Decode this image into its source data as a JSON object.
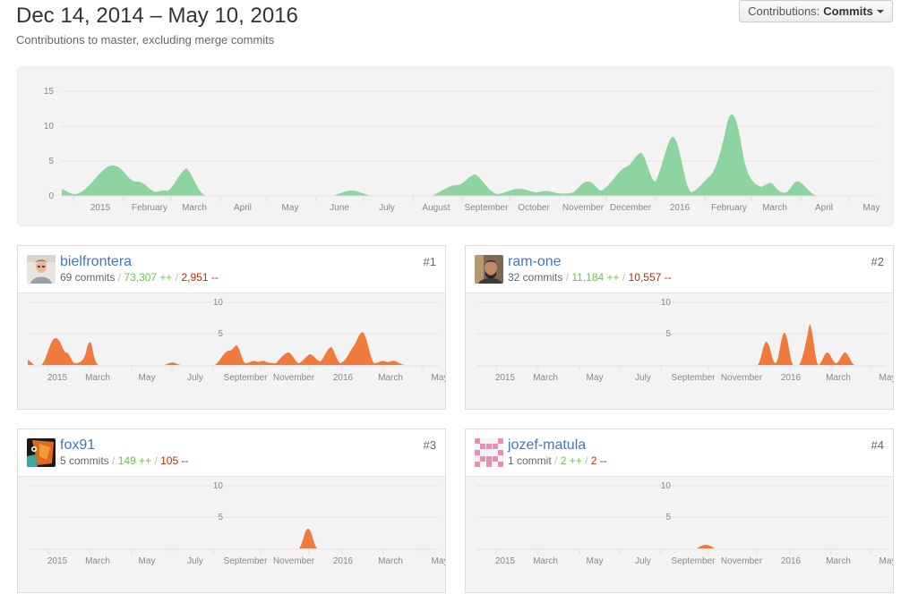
{
  "header": {
    "title": "Dec 14, 2014 – May 10, 2016",
    "subtitle": "Contributions to master, excluding merge commits",
    "dropdown_prefix": "Contributions:",
    "dropdown_value": "Commits"
  },
  "colors": {
    "main_area": "#8ed4a0",
    "contributor_area": "#f07a3c",
    "link": "#4078c0",
    "additions": "#6cc644",
    "deletions": "#bd2c00"
  },
  "main_chart": {
    "y_ticks": [
      "15",
      "10",
      "5",
      "0"
    ],
    "x_ticks": [
      "2015",
      "February",
      "March",
      "April",
      "May",
      "June",
      "July",
      "August",
      "September",
      "October",
      "November",
      "December",
      "2016",
      "February",
      "March",
      "April",
      "May"
    ]
  },
  "card_chart": {
    "y_ticks": [
      "10",
      "5"
    ],
    "x_ticks": [
      "2015",
      "March",
      "May",
      "July",
      "September",
      "November",
      "2016",
      "March",
      "May"
    ]
  },
  "contributors": [
    {
      "rank": "#1",
      "username": "bielfrontera",
      "commits": "69 commits",
      "additions": "73,307 ++",
      "deletions": "2,951 --",
      "avatar": "person-light-icon"
    },
    {
      "rank": "#2",
      "username": "ram-one",
      "commits": "32 commits",
      "additions": "11,184 ++",
      "deletions": "10,557 --",
      "avatar": "person-dark-icon"
    },
    {
      "rank": "#3",
      "username": "fox91",
      "commits": "5 commits",
      "additions": "149 ++",
      "deletions": "105 --",
      "avatar": "fox-photo-icon"
    },
    {
      "rank": "#4",
      "username": "jozef-matula",
      "commits": "1 commit",
      "additions": "2 ++",
      "deletions": "2 --",
      "avatar": "identicon-pink-icon"
    }
  ]
}
